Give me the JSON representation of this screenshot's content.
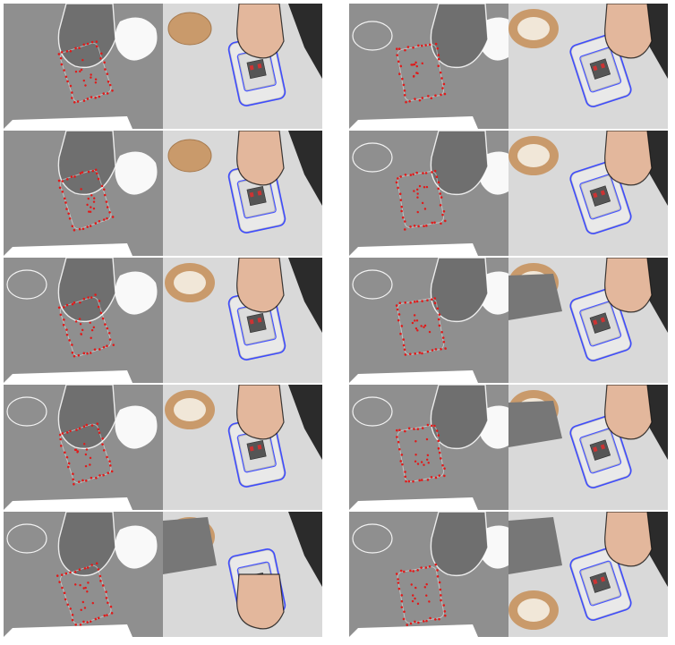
{
  "figure": {
    "columns": [
      {
        "id": "left-column",
        "rows": 5
      },
      {
        "id": "right-column",
        "rows": 5
      }
    ],
    "panel_types": [
      "depth-map-with-keypoints",
      "rgb-with-pose-overlay"
    ],
    "colors": {
      "depth_background": "#8f8f8f",
      "depth_hand": "#6f6f6f",
      "depth_edge": "#ffffff",
      "keypoint": "#e01a1a",
      "table": "#d9d9d9",
      "overlay": "#2d3cff",
      "box_body": "#e9e9e9",
      "wood": "#c99a6b",
      "skin": "#e3b79c",
      "dark_object": "#2b2b2b",
      "sleeve": "#777777"
    }
  }
}
